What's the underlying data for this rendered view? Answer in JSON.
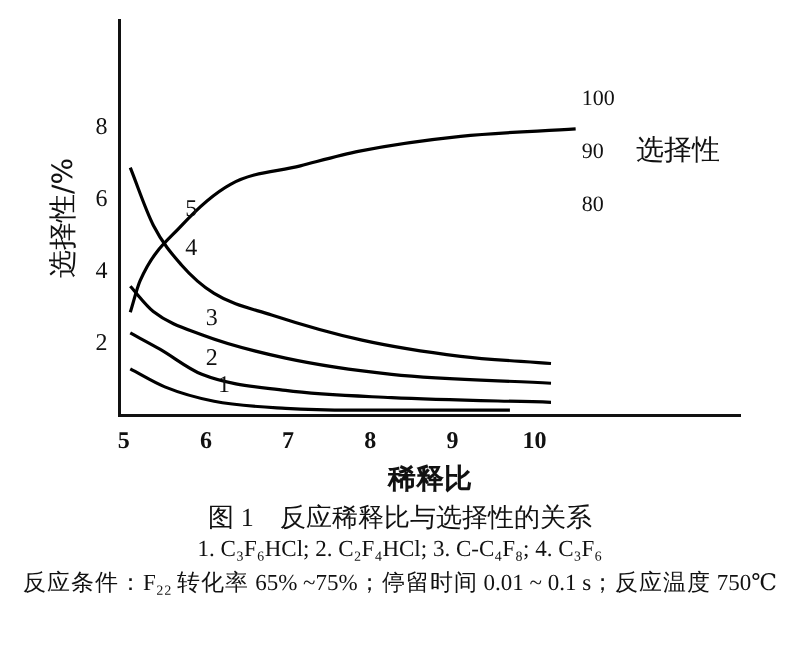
{
  "chart_data": {
    "type": "line",
    "xlabel": "稀释比",
    "ylabel": "选择性/%",
    "y2label": "选择性",
    "xlim": [
      4.95,
      12.5
    ],
    "xticks": [
      5,
      6,
      7,
      8,
      9,
      10
    ],
    "ylim": [
      0,
      11
    ],
    "yticks": [
      2,
      4,
      6,
      8
    ],
    "y2lim": [
      40,
      115
    ],
    "y2ticks": [
      80,
      90,
      100
    ],
    "grid": false,
    "legend": false,
    "marker": "none",
    "line_style": "solid",
    "series": [
      {
        "name": "1",
        "color": "#000000",
        "x": [
          5.08,
          5.5,
          6.1,
          6.97,
          7.8,
          9.7
        ],
        "values": [
          1.3,
          0.8,
          0.4,
          0.2,
          0.15,
          0.15
        ]
      },
      {
        "name": "2",
        "color": "#000000",
        "x": [
          5.08,
          5.44,
          5.95,
          6.97,
          8.26,
          10.2
        ],
        "values": [
          2.3,
          1.85,
          1.15,
          0.7,
          0.5,
          0.37
        ]
      },
      {
        "name": "3",
        "color": "#000000",
        "x": [
          5.08,
          5.36,
          5.95,
          6.97,
          8.26,
          10.2
        ],
        "values": [
          3.6,
          2.9,
          2.25,
          1.6,
          1.15,
          0.9
        ]
      },
      {
        "name": "4",
        "color": "#000000",
        "x": [
          5.08,
          5.36,
          5.7,
          6.1,
          6.8,
          7.9,
          9.1,
          10.2
        ],
        "values": [
          6.9,
          5.3,
          4.2,
          3.4,
          2.8,
          2.1,
          1.65,
          1.45
        ]
      },
      {
        "name": "5",
        "color": "#000000",
        "axis": "y2",
        "x": [
          5.08,
          5.2,
          5.7,
          6.3,
          7.15,
          7.87,
          9.1,
          10.5
        ],
        "values": [
          59.6,
          65.6,
          76,
          83.9,
          87.4,
          90.2,
          93,
          94.4
        ]
      }
    ],
    "annotations": [
      "图 1　反应稀释比与选择性的关系",
      "1. C₃F₆HCl; 2. C₂F₄HCl; 3. C-C₄F₈; 4. C₃F₆",
      "反应条件：F₂₂ 转化率 65% ~75%；停留时间 0.01 ~ 0.1 s；反应温度 750℃"
    ]
  }
}
